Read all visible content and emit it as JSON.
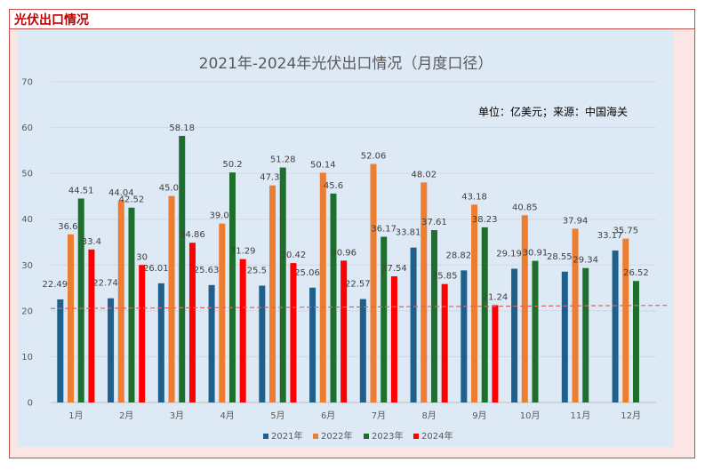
{
  "header": {
    "title": "光伏出口情况"
  },
  "chart_data": {
    "type": "bar",
    "title": "2021年-2024年光伏出口情况（月度口径）",
    "note": "单位：亿美元；来源：中国海关",
    "categories": [
      "1月",
      "2月",
      "3月",
      "4月",
      "5月",
      "6月",
      "7月",
      "8月",
      "9月",
      "10月",
      "11月",
      "12月"
    ],
    "series": [
      {
        "name": "2021年",
        "color": "#1f5f8b",
        "values": [
          22.49,
          22.74,
          26.01,
          25.63,
          25.5,
          25.06,
          22.57,
          33.81,
          28.82,
          29.19,
          28.55,
          33.17
        ]
      },
      {
        "name": "2022年",
        "color": "#ed7d31",
        "values": [
          36.69,
          44.04,
          45.07,
          39.04,
          47.37,
          50.14,
          52.06,
          48.02,
          43.18,
          40.85,
          37.94,
          35.75
        ]
      },
      {
        "name": "2023年",
        "color": "#1e6f2e",
        "values": [
          44.51,
          42.52,
          58.18,
          50.2,
          51.28,
          45.6,
          36.17,
          37.61,
          38.23,
          30.91,
          29.34,
          26.52
        ]
      },
      {
        "name": "2024年",
        "color": "#ff0000",
        "values": [
          33.4,
          30,
          34.86,
          31.29,
          30.42,
          30.96,
          27.54,
          25.85,
          21.24,
          null,
          null,
          null
        ]
      }
    ],
    "ylim": [
      0,
      70
    ],
    "yticks": [
      0,
      10,
      20,
      30,
      40,
      50,
      60,
      70
    ],
    "reference_line": {
      "start": 20.5,
      "end": 21.2,
      "color": "#e06060",
      "style": "dashed"
    },
    "grid": true,
    "legend_position": "bottom"
  }
}
